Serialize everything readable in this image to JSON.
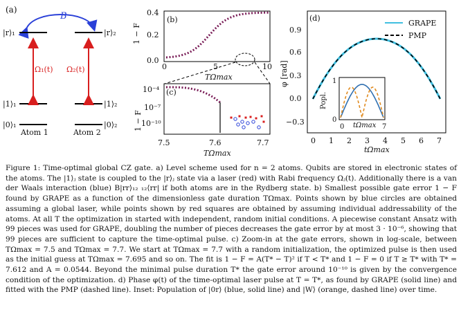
{
  "panel_a": {
    "label": "(a)",
    "coupling": "B",
    "atom1_levels": [
      "|r⟩₁",
      "|1⟩₁",
      "|0⟩₁"
    ],
    "atom2_levels": [
      "|r⟩₂",
      "|1⟩₂",
      "|0⟩₂"
    ],
    "drive1": "Ω₁(t)",
    "drive2": "Ω₂(t)",
    "atom1_name": "Atom 1",
    "atom2_name": "Atom 2",
    "colors": {
      "coupling": "#2a40d8",
      "drive": "#d81e1e",
      "levels": "#000000"
    }
  },
  "panel_b": {
    "label": "(b)",
    "ylabel": "1 − F",
    "xlabel": "TΩmax",
    "yticks": [
      "0.4",
      "0.2",
      "0.0"
    ],
    "xticks": [
      "0",
      "5",
      "10"
    ]
  },
  "panel_c": {
    "label": "(c)",
    "ylabel": "1 − F",
    "xlabel": "TΩmax",
    "yticks": [
      "10⁻⁴",
      "10⁻⁷",
      "10⁻¹⁰"
    ],
    "xticks": [
      "7.5",
      "7.6",
      "7.7"
    ]
  },
  "panel_d": {
    "label": "(d)",
    "ylabel": "φ [rad]",
    "xlabel": "tΩmax",
    "yticks": [
      "0.9",
      "0.6",
      "0.3",
      "0.0",
      "−0.3"
    ],
    "xticks": [
      "0",
      "1",
      "2",
      "3",
      "4",
      "5",
      "6",
      "7"
    ],
    "legend": [
      "GRAPE",
      "PMP"
    ],
    "colors": {
      "grape": "#3fbfe0",
      "pmp": "#000000"
    },
    "inset": {
      "ylabel": "Popl.",
      "xlabel": "tΩmax",
      "yticks": [
        "1",
        "0"
      ],
      "xticks": [
        "0",
        "7"
      ],
      "colors": {
        "solid": "#2f6fb0",
        "dashed": "#e08a1e"
      }
    }
  },
  "caption": {
    "label": "Figure 1:",
    "text": "Time-optimal global CZ gate. a) Level scheme used for n = 2 atoms. Qubits are stored in electronic states of the atoms. The |1⟩ⱼ state is coupled to the |r⟩ⱼ state via a laser (red) with Rabi frequency Ωⱼ(t). Additionally there is a van der Waals interaction (blue) B|rr⟩₁₂ ₁₂⟨rr| if both atoms are in the Rydberg state. b) Smallest possible gate error 1 − F found by GRAPE as a function of the dimensionless gate duration TΩmax. Points shown by blue circles are obtained assuming a global laser, while points shown by red squares are obtained by assuming individual addressability of the atoms. At all T the optimization in started with independent, random initial conditions. A piecewise constant Ansatz with 99 pieces was used for GRAPE, doubling the number of pieces decreases the gate error by at most 3 · 10⁻⁶, showing that 99 pieces are sufficient to capture the time-optimal pulse. c) Zoom-in at the gate errors, shown in log-scale, between TΩmax = 7.5 and TΩmax = 7.7. We start at TΩmax = 7.7 with a random initialization, the optimized pulse is then used as the initial guess at TΩmax = 7.695 and so on. The fit is 1 − F = A(T* − T)² if T < T* and 1 − F = 0 if T ≥ T* with T* = 7.612 and A = 0.0544. Beyond the minimal pulse duration T* the gate error around 10⁻¹⁰ is given by the convergence condition of the optimization. d) Phase φ(t) of the time-optimal laser pulse at T = T*, as found by GRAPE (solid line) and fitted with the PMP (dashed line). Inset: Population of |0r⟩ (blue, solid line) and |W⟩ (orange, dashed line) over time."
  }
}
